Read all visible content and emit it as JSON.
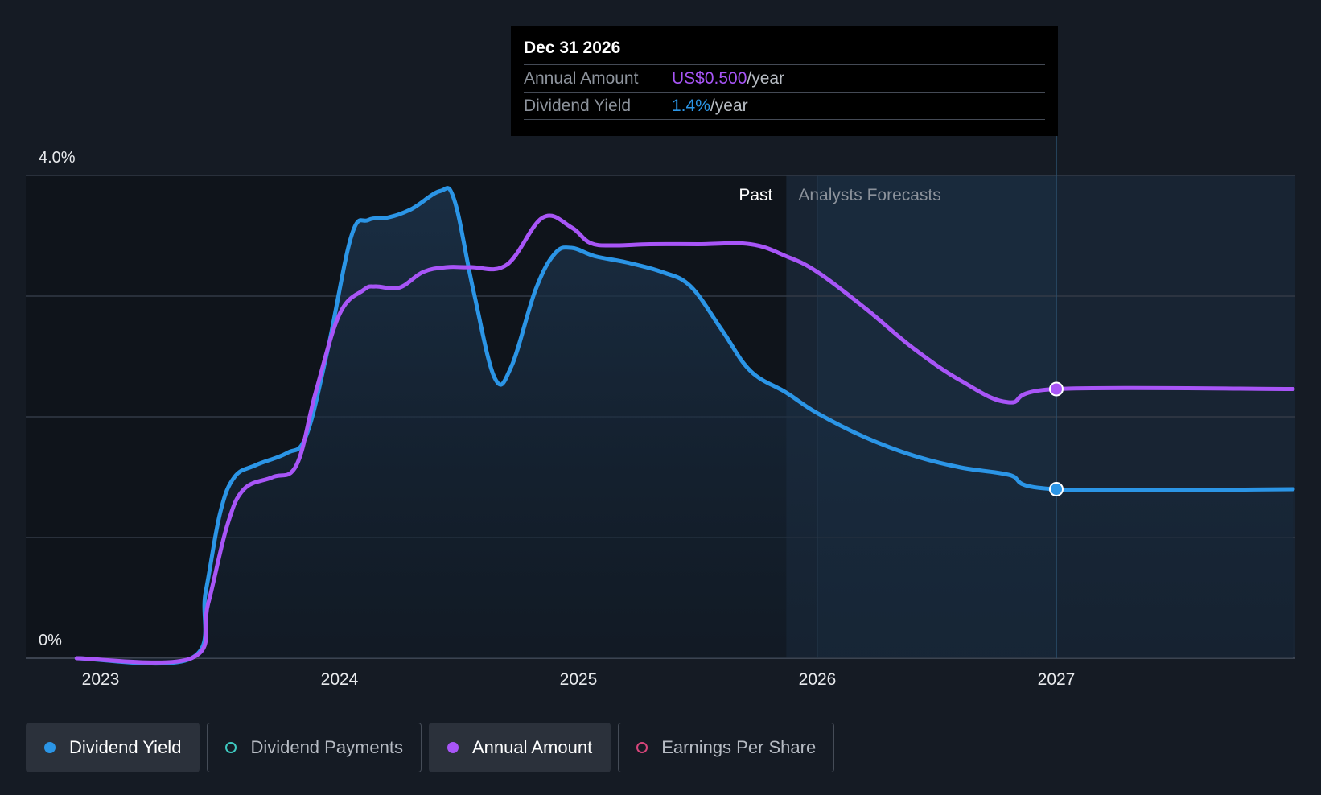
{
  "tooltip": {
    "date": "Dec 31 2026",
    "rows": [
      {
        "label": "Annual Amount",
        "value": "US$0.500",
        "unit": "/year"
      },
      {
        "label": "Dividend Yield",
        "value": "1.4%",
        "unit": "/year"
      }
    ]
  },
  "chart_data": {
    "type": "line",
    "title": "",
    "xlabel": "",
    "ylabel": "",
    "x_ticks": [
      "2023",
      "2024",
      "2025",
      "2026",
      "2027"
    ],
    "y_tick_labels": [
      "4.0%",
      "0%"
    ],
    "ylim": [
      0,
      4.0
    ],
    "section_labels": {
      "past": "Past",
      "forecast": "Analysts Forecasts"
    },
    "past_end": 2025.87,
    "highlight_x": 2027.0,
    "x_range": [
      2022.75,
      2027.99
    ],
    "series": [
      {
        "name": "Dividend Yield",
        "color": "#2b95e6",
        "unit": "%",
        "points": [
          [
            2022.9,
            0
          ],
          [
            2023.38,
            0
          ],
          [
            2023.44,
            0.55
          ],
          [
            2023.5,
            1.2
          ],
          [
            2023.56,
            1.5
          ],
          [
            2023.65,
            1.6
          ],
          [
            2023.78,
            1.7
          ],
          [
            2023.86,
            1.84
          ],
          [
            2023.95,
            2.55
          ],
          [
            2024.05,
            3.5
          ],
          [
            2024.12,
            3.63
          ],
          [
            2024.2,
            3.65
          ],
          [
            2024.3,
            3.72
          ],
          [
            2024.42,
            3.87
          ],
          [
            2024.48,
            3.8
          ],
          [
            2024.56,
            3.05
          ],
          [
            2024.65,
            2.32
          ],
          [
            2024.72,
            2.42
          ],
          [
            2024.82,
            3.05
          ],
          [
            2024.9,
            3.35
          ],
          [
            2024.97,
            3.4
          ],
          [
            2025.07,
            3.33
          ],
          [
            2025.2,
            3.28
          ],
          [
            2025.35,
            3.2
          ],
          [
            2025.47,
            3.08
          ],
          [
            2025.6,
            2.72
          ],
          [
            2025.72,
            2.38
          ],
          [
            2025.87,
            2.2
          ],
          [
            2026.0,
            2.03
          ],
          [
            2026.2,
            1.83
          ],
          [
            2026.4,
            1.68
          ],
          [
            2026.6,
            1.58
          ],
          [
            2026.8,
            1.52
          ],
          [
            2027.0,
            1.4
          ],
          [
            2027.99,
            1.4
          ]
        ],
        "marker": [
          2027.0,
          1.4
        ]
      },
      {
        "name": "Annual Amount",
        "color": "#a855f7",
        "unit": "US$",
        "points": [
          [
            2022.9,
            0
          ],
          [
            2023.38,
            0
          ],
          [
            2023.45,
            0.45
          ],
          [
            2023.53,
            1.1
          ],
          [
            2023.6,
            1.4
          ],
          [
            2023.72,
            1.5
          ],
          [
            2023.82,
            1.6
          ],
          [
            2023.9,
            2.2
          ],
          [
            2024.0,
            2.85
          ],
          [
            2024.1,
            3.05
          ],
          [
            2024.15,
            3.08
          ],
          [
            2024.25,
            3.07
          ],
          [
            2024.35,
            3.2
          ],
          [
            2024.45,
            3.24
          ],
          [
            2024.55,
            3.24
          ],
          [
            2024.7,
            3.26
          ],
          [
            2024.85,
            3.65
          ],
          [
            2024.97,
            3.57
          ],
          [
            2025.05,
            3.44
          ],
          [
            2025.15,
            3.42
          ],
          [
            2025.3,
            3.43
          ],
          [
            2025.5,
            3.43
          ],
          [
            2025.72,
            3.43
          ],
          [
            2025.87,
            3.33
          ],
          [
            2026.0,
            3.2
          ],
          [
            2026.2,
            2.9
          ],
          [
            2026.4,
            2.57
          ],
          [
            2026.6,
            2.3
          ],
          [
            2026.8,
            2.12
          ],
          [
            2027.0,
            2.23
          ],
          [
            2027.99,
            2.23
          ]
        ],
        "marker": [
          2027.0,
          2.23
        ]
      }
    ]
  },
  "legend": [
    {
      "label": "Dividend Yield",
      "color": "#2b95e6",
      "active": true
    },
    {
      "label": "Dividend Payments",
      "color": "#3ec9c0",
      "active": false
    },
    {
      "label": "Annual Amount",
      "color": "#a855f7",
      "active": true
    },
    {
      "label": "Earnings Per Share",
      "color": "#d6457a",
      "active": false
    }
  ]
}
